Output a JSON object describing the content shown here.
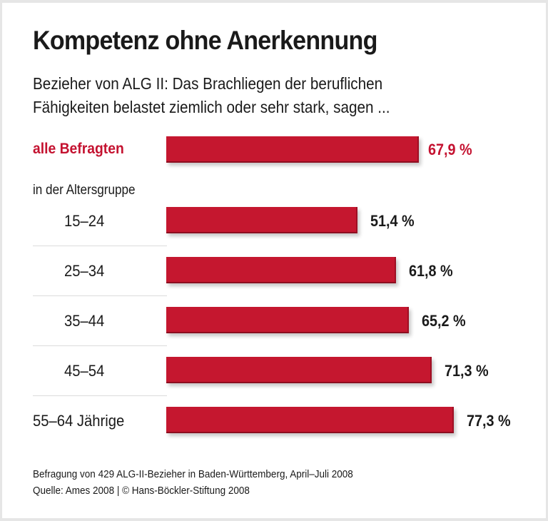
{
  "chart_data": {
    "type": "bar",
    "orientation": "horizontal",
    "title": "Kompetenz ohne Anerkennung",
    "subtitle": "Bezieher von ALG II: Das Brachliegen der beruflichen Fähigkeiten belastet ziemlich oder sehr stark, sagen ...",
    "xlabel": "",
    "ylabel": "",
    "xlim": [
      0,
      100
    ],
    "grid": false,
    "unit": "%",
    "total": {
      "label": "alle Befragten",
      "value": 67.9,
      "value_label": "67,9 %"
    },
    "group_label": "in der Altersgruppe",
    "categories": [
      "15–24",
      "25–34",
      "35–44",
      "45–54",
      "55–64 Jährige"
    ],
    "values": [
      51.4,
      61.8,
      65.2,
      71.3,
      77.3
    ],
    "value_labels": [
      "51,4 %",
      "61,8 %",
      "65,2 %",
      "71,3 %",
      "77,3 %"
    ],
    "colors": {
      "bar": "#c5172f",
      "highlight_text": "#c41230",
      "text": "#1a1a1a"
    }
  },
  "footer": {
    "note": "Befragung von 429 ALG-II-Bezieher in Baden-Württemberg, April–Juli 2008",
    "source": "Quelle: Ames 2008 | © Hans-Böckler-Stiftung 2008"
  }
}
